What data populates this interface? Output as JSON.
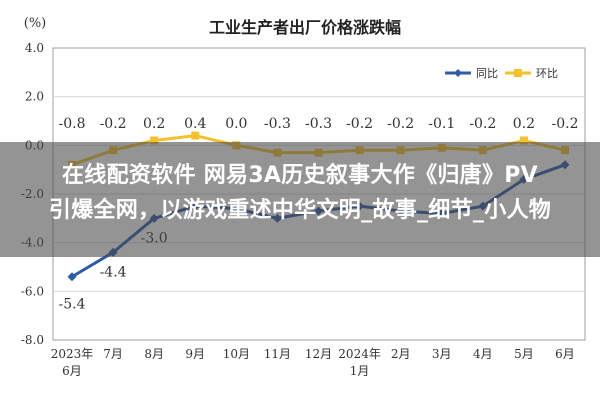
{
  "chart_data": {
    "type": "line",
    "title": "工业生产者出厂价格涨跌幅",
    "ylabel": "(%)",
    "xlabel": "",
    "categories": [
      "2023年\n6月",
      "7月",
      "8月",
      "9月",
      "10月",
      "11月",
      "12月",
      "2024年\n1月",
      "2月",
      "3月",
      "4月",
      "5月",
      "6月"
    ],
    "ylim": [
      -8.0,
      4.0
    ],
    "yticks": [
      "4.0",
      "2.0",
      "0.0",
      "-2.0",
      "-4.0",
      "-6.0",
      "-8.0"
    ],
    "grid": true,
    "legend_position": "top-right",
    "series": [
      {
        "name": "同比",
        "color": "#2e5aa8",
        "values": [
          -5.4,
          -4.4,
          -3.0,
          -2.5,
          -2.6,
          -3.0,
          -2.7,
          -2.5,
          -2.7,
          -2.8,
          -2.5,
          -1.4,
          -0.8
        ],
        "labels": [
          "-5.4",
          "-4.4",
          "-3.0",
          "",
          "",
          "",
          "",
          "",
          "",
          "",
          "",
          "",
          ""
        ]
      },
      {
        "name": "环比",
        "color": "#f2c12e",
        "values": [
          -0.8,
          -0.2,
          0.2,
          0.4,
          0.0,
          -0.3,
          -0.3,
          -0.2,
          -0.2,
          -0.1,
          -0.2,
          0.2,
          -0.2
        ],
        "labels": [
          "-0.8",
          "-0.2",
          "0.2",
          "0.4",
          "0.0",
          "-0.3",
          "-0.3",
          "-0.2",
          "-0.2",
          "-0.1",
          "-0.2",
          "0.2",
          "-0.2"
        ]
      }
    ]
  },
  "overlay": {
    "line1": "在线配资软件 网易3A历史叙事大作《归唐》PV",
    "line2": "引爆全网，以游戏重述中华文明_故事_细节_小人物"
  }
}
